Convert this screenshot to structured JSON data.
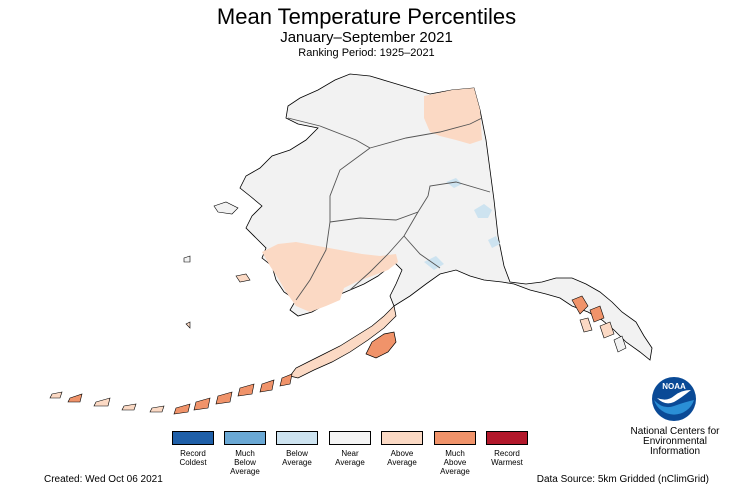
{
  "header": {
    "title": "Mean Temperature Percentiles",
    "subtitle": "January–September 2021",
    "ranking_period": "Ranking Period: 1925–2021"
  },
  "map": {
    "region": "Alaska",
    "land_fill": "#f2f2f2",
    "outline_color": "#000000",
    "division_line_color": "#555555"
  },
  "legend": {
    "items": [
      {
        "label": "Record\nColdest",
        "color": "#1f5fa8"
      },
      {
        "label": "Much\nBelow\nAverage",
        "color": "#6aa8d4"
      },
      {
        "label": "Below\nAverage",
        "color": "#cde3f0"
      },
      {
        "label": "Near\nAverage",
        "color": "#f4f4f4"
      },
      {
        "label": "Above\nAverage",
        "color": "#fbd9c4"
      },
      {
        "label": "Much\nAbove\nAverage",
        "color": "#f0936a"
      },
      {
        "label": "Record\nWarmest",
        "color": "#b2182b"
      }
    ]
  },
  "footer": {
    "created": "Created: Wed Oct 06 2021",
    "data_source": "Data Source: 5km Gridded (nClimGrid)",
    "organization": "National Centers for\nEnvironmental\nInformation",
    "logo_text": "NOAA"
  }
}
